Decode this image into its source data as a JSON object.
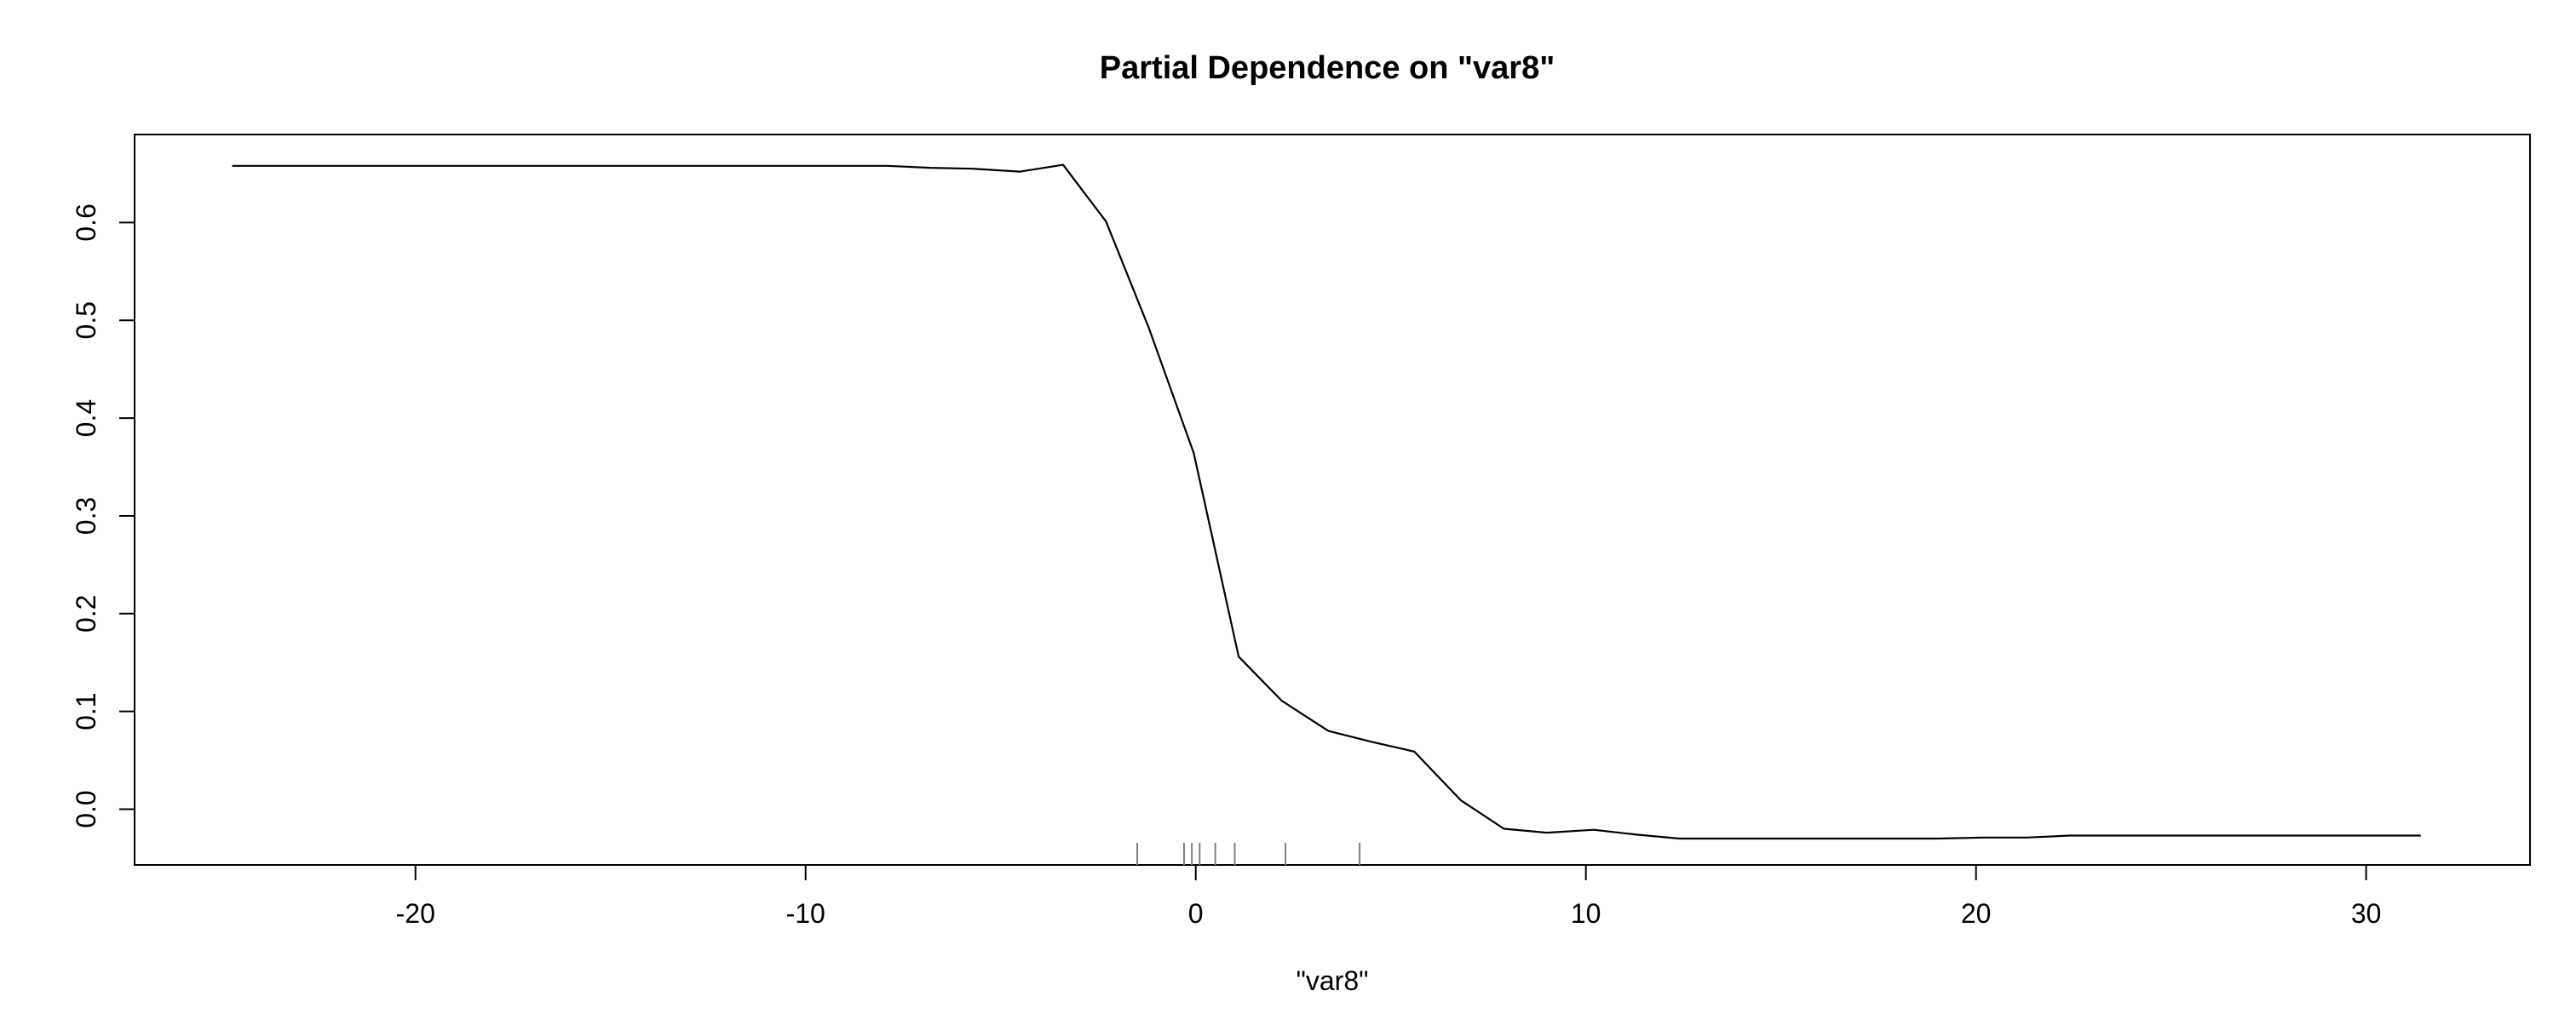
{
  "chart_data": {
    "type": "line",
    "title": "Partial Dependence on \"var8\"",
    "xlabel": "\"var8\"",
    "ylabel": "",
    "xlim": [
      -27.2,
      34.2
    ],
    "ylim": [
      -0.057,
      0.69
    ],
    "x_ticks": [
      -20,
      -10,
      0,
      10,
      20,
      30
    ],
    "x_tick_labels": [
      "-20",
      "-10",
      "0",
      "10",
      "20",
      "30"
    ],
    "y_ticks": [
      0.0,
      0.1,
      0.2,
      0.3,
      0.4,
      0.5,
      0.6
    ],
    "y_tick_labels": [
      "0.0",
      "0.1",
      "0.2",
      "0.3",
      "0.4",
      "0.5",
      "0.6"
    ],
    "grid": false,
    "legend": "none",
    "line_color": "#000000",
    "rug_color": "#808080",
    "series": [
      {
        "x": [
          -24.7,
          -7.9,
          -6.8,
          -5.7,
          -4.5,
          -3.4,
          -2.3,
          -1.2,
          -0.05,
          1.1,
          2.2,
          3.4,
          4.5,
          5.6,
          6.8,
          7.9,
          9.0,
          10.2,
          11.3,
          12.4,
          15.0,
          19.0,
          20.2,
          21.3,
          22.4,
          26.0,
          31.4
        ],
        "y": [
          0.658,
          0.658,
          0.656,
          0.655,
          0.652,
          0.659,
          0.601,
          0.492,
          0.364,
          0.156,
          0.111,
          0.08,
          0.069,
          0.059,
          0.009,
          -0.02,
          -0.024,
          -0.021,
          -0.026,
          -0.03,
          -0.03,
          -0.03,
          -0.029,
          -0.029,
          -0.027,
          -0.027,
          -0.027
        ]
      }
    ],
    "rug": [
      -1.5,
      -0.3,
      -0.1,
      0.1,
      0.5,
      1.0,
      2.3,
      4.2
    ]
  }
}
